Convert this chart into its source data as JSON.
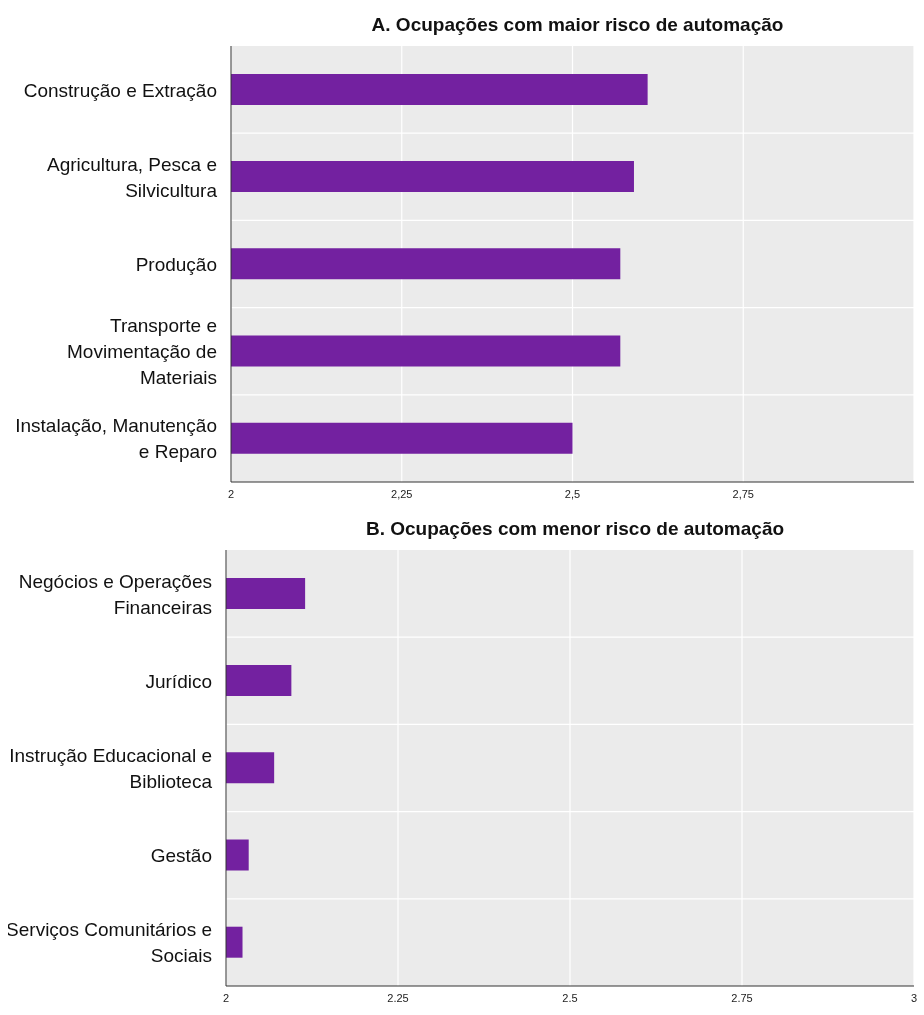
{
  "chart_data": [
    {
      "type": "bar",
      "orientation": "horizontal",
      "title": "A. Ocupações com maior risco de automação",
      "categories": [
        "Construção e Extração",
        "Agricultura, Pesca e Silvicultura",
        "Produção",
        "Transporte e Movimentação de Materiais",
        "Instalação, Manutenção e Reparo"
      ],
      "values": [
        2.61,
        2.59,
        2.57,
        2.57,
        2.5
      ],
      "color": "#7321a0",
      "xlim": [
        2,
        3
      ],
      "xticks": [
        2,
        {
          "value": 2.25,
          "label": "2,25"
        },
        {
          "value": 2.5,
          "label": "2,5"
        },
        {
          "value": 2.75,
          "label": "2,75"
        },
        {
          "value": 3,
          "label": null
        }
      ],
      "grid": true
    },
    {
      "type": "bar",
      "orientation": "horizontal",
      "title": "B. Ocupações com menor risco de automação",
      "categories": [
        "Negócios e Operações Financeiras",
        "Jurídico",
        "Instrução Educacional e Biblioteca",
        "Gestão",
        "Serviços Comunitários e Sociais"
      ],
      "values": [
        2.115,
        2.095,
        2.07,
        2.033,
        2.024
      ],
      "color": "#7321a0",
      "xlim": [
        2,
        3
      ],
      "xticks": [
        2,
        2.25,
        2.5,
        2.75,
        3
      ],
      "grid": true
    }
  ]
}
